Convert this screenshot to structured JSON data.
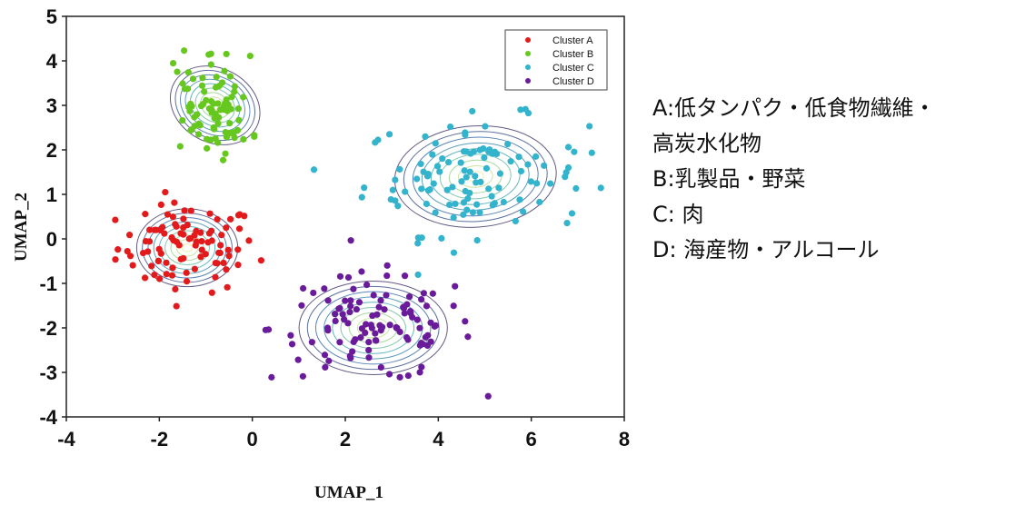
{
  "chart_data": {
    "type": "scatter",
    "title": "",
    "xlabel": "UMAP_1",
    "ylabel": "UMAP_2",
    "xlim": [
      -4,
      8
    ],
    "ylim": [
      -4,
      5
    ],
    "xticks": [
      "-4",
      "-2",
      "0",
      "2",
      "4",
      "6",
      "8"
    ],
    "yticks": [
      "-4",
      "-3",
      "-2",
      "-1",
      "0",
      "1",
      "2",
      "3",
      "4",
      "5"
    ],
    "grid": false,
    "legend_position": "top-right",
    "series": [
      {
        "name": "Cluster A",
        "color": "#e31a1c",
        "center": [
          -1.4,
          -0.2
        ],
        "spread": [
          0.75,
          0.5
        ]
      },
      {
        "name": "Cluster B",
        "color": "#66c81e",
        "center": [
          -0.8,
          3.0
        ],
        "spread": [
          0.55,
          0.6
        ]
      },
      {
        "name": "Cluster C",
        "color": "#33b3cc",
        "center": [
          4.8,
          1.4
        ],
        "spread": [
          1.2,
          0.65
        ]
      },
      {
        "name": "Cluster D",
        "color": "#6a1b9a",
        "center": [
          2.6,
          -2.0
        ],
        "spread": [
          1.1,
          0.6
        ]
      }
    ]
  },
  "annotations": [
    "A:低タンパク・低食物繊維・",
    "高炭水化物",
    "B:乳製品・野菜",
    "C: 肉",
    "D: 海産物・アルコール"
  ]
}
